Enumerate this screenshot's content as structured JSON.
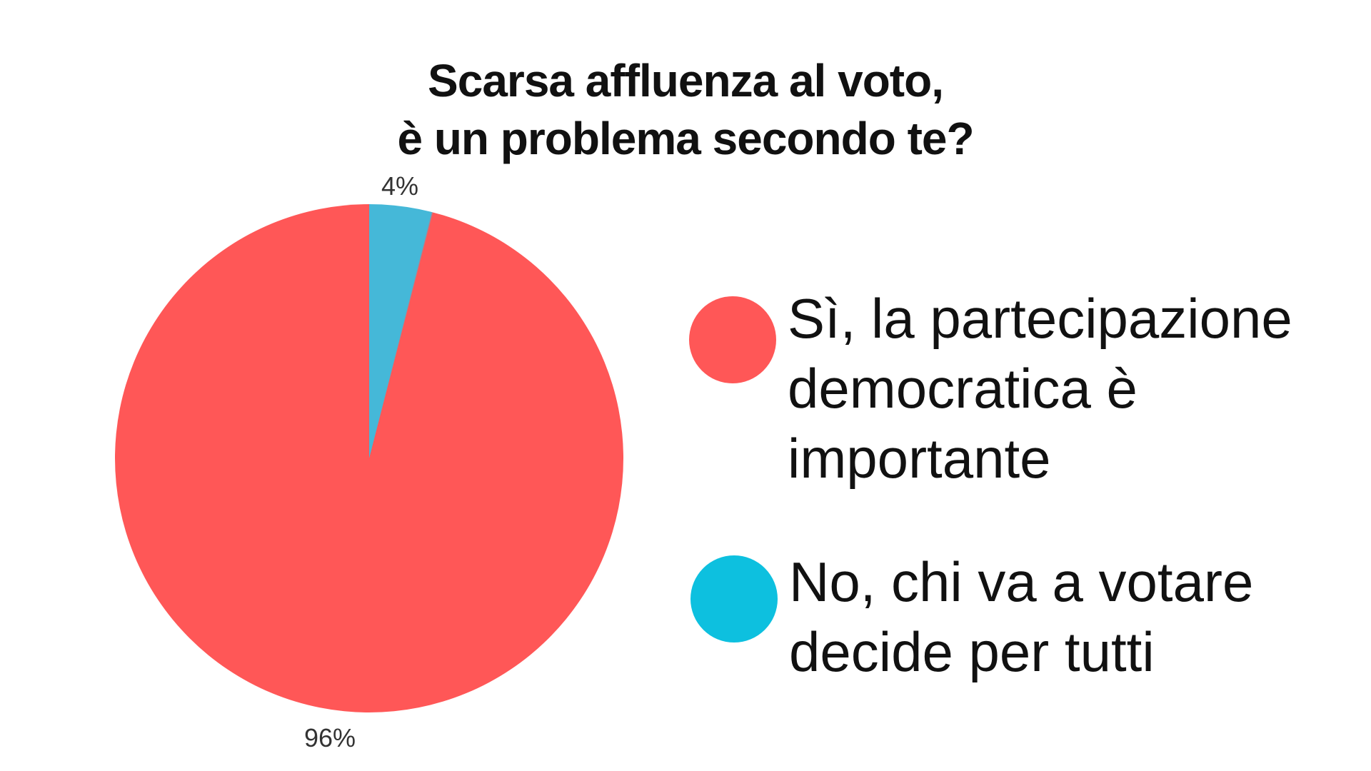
{
  "page": {
    "background": "#ffffff"
  },
  "title": {
    "lines": [
      "Scarsa affluenza al voto,",
      "è un problema secondo te?"
    ],
    "color": "#111111"
  },
  "chart_data": {
    "type": "pie",
    "title": "Scarsa affluenza al voto, è un problema secondo te?",
    "direction": "clockwise",
    "start_angle_deg": 0,
    "legend_position": "right",
    "slices": [
      {
        "label": "Sì, la partecipazione democratica è importante",
        "value": 96,
        "percent_label": "96%",
        "color": "#FF5757"
      },
      {
        "label": "No, chi va a votare decide per tutti",
        "value": 4,
        "percent_label": "4%",
        "color": "#45B8D8"
      }
    ]
  },
  "legend": {
    "items": [
      {
        "swatch_color": "#FF5757",
        "lines": [
          "Sì, la partecipazione",
          "democratica è",
          "importante"
        ]
      },
      {
        "swatch_color": "#0DC0DF",
        "lines": [
          "No, chi va a votare",
          "decide per tutti"
        ]
      }
    ]
  }
}
